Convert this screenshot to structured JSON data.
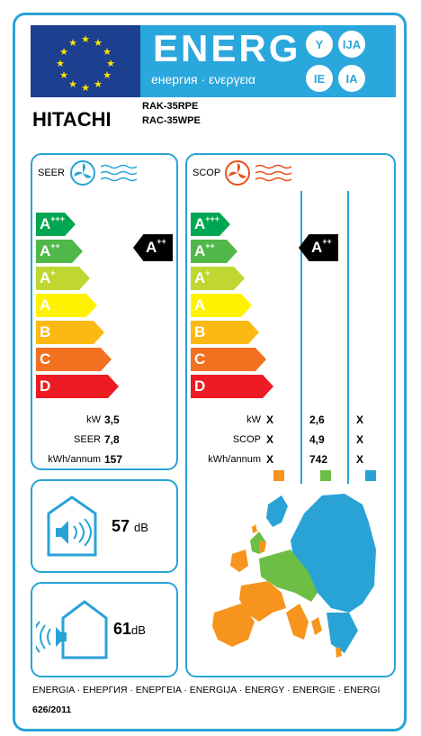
{
  "header": {
    "energy_word": "ENERG",
    "energy_sub": "енергия · ενεργεια",
    "lang_badges": [
      "Y",
      "IJA",
      "IE",
      "IA"
    ],
    "brand": "HITACHI",
    "models": [
      "RAK-35RPE",
      "RAC-35WPE"
    ]
  },
  "scale_classes": [
    "A",
    "A",
    "A",
    "A",
    "B",
    "C",
    "D"
  ],
  "scale_sups": [
    "+++",
    "++",
    "+",
    "",
    "",
    "",
    ""
  ],
  "scale_colors": [
    "#00a651",
    "#50b848",
    "#bfd730",
    "#fff200",
    "#fdb913",
    "#f37021",
    "#ed1c24"
  ],
  "seer": {
    "title": "SEER",
    "rating": "A",
    "rating_sup": "++",
    "labels": [
      "kW",
      "SEER",
      "kWh/annum"
    ],
    "values": [
      "3,5",
      "7,8",
      "157"
    ]
  },
  "scop": {
    "title": "SCOP",
    "rating": "A",
    "rating_sup": "++",
    "labels": [
      "kW",
      "SCOP",
      "kWh/annum"
    ],
    "col_warm": [
      "X",
      "X",
      "X"
    ],
    "col_average": [
      "2,6",
      "4,9",
      "742"
    ],
    "col_cold": [
      "X",
      "X",
      "X"
    ],
    "zone_colors": [
      "#f7941d",
      "#6cbe45",
      "#29a3d6"
    ]
  },
  "noise": {
    "indoor_value": "57",
    "outdoor_value": "61",
    "unit": "dB"
  },
  "footer": {
    "languages": "ENERGIA · ЕНЕРГИЯ · ΕΝΕΡΓΕΙΑ · ENERGIJA · ENERGY · ENERGIE · ENERGI",
    "regulation": "626/2011"
  }
}
